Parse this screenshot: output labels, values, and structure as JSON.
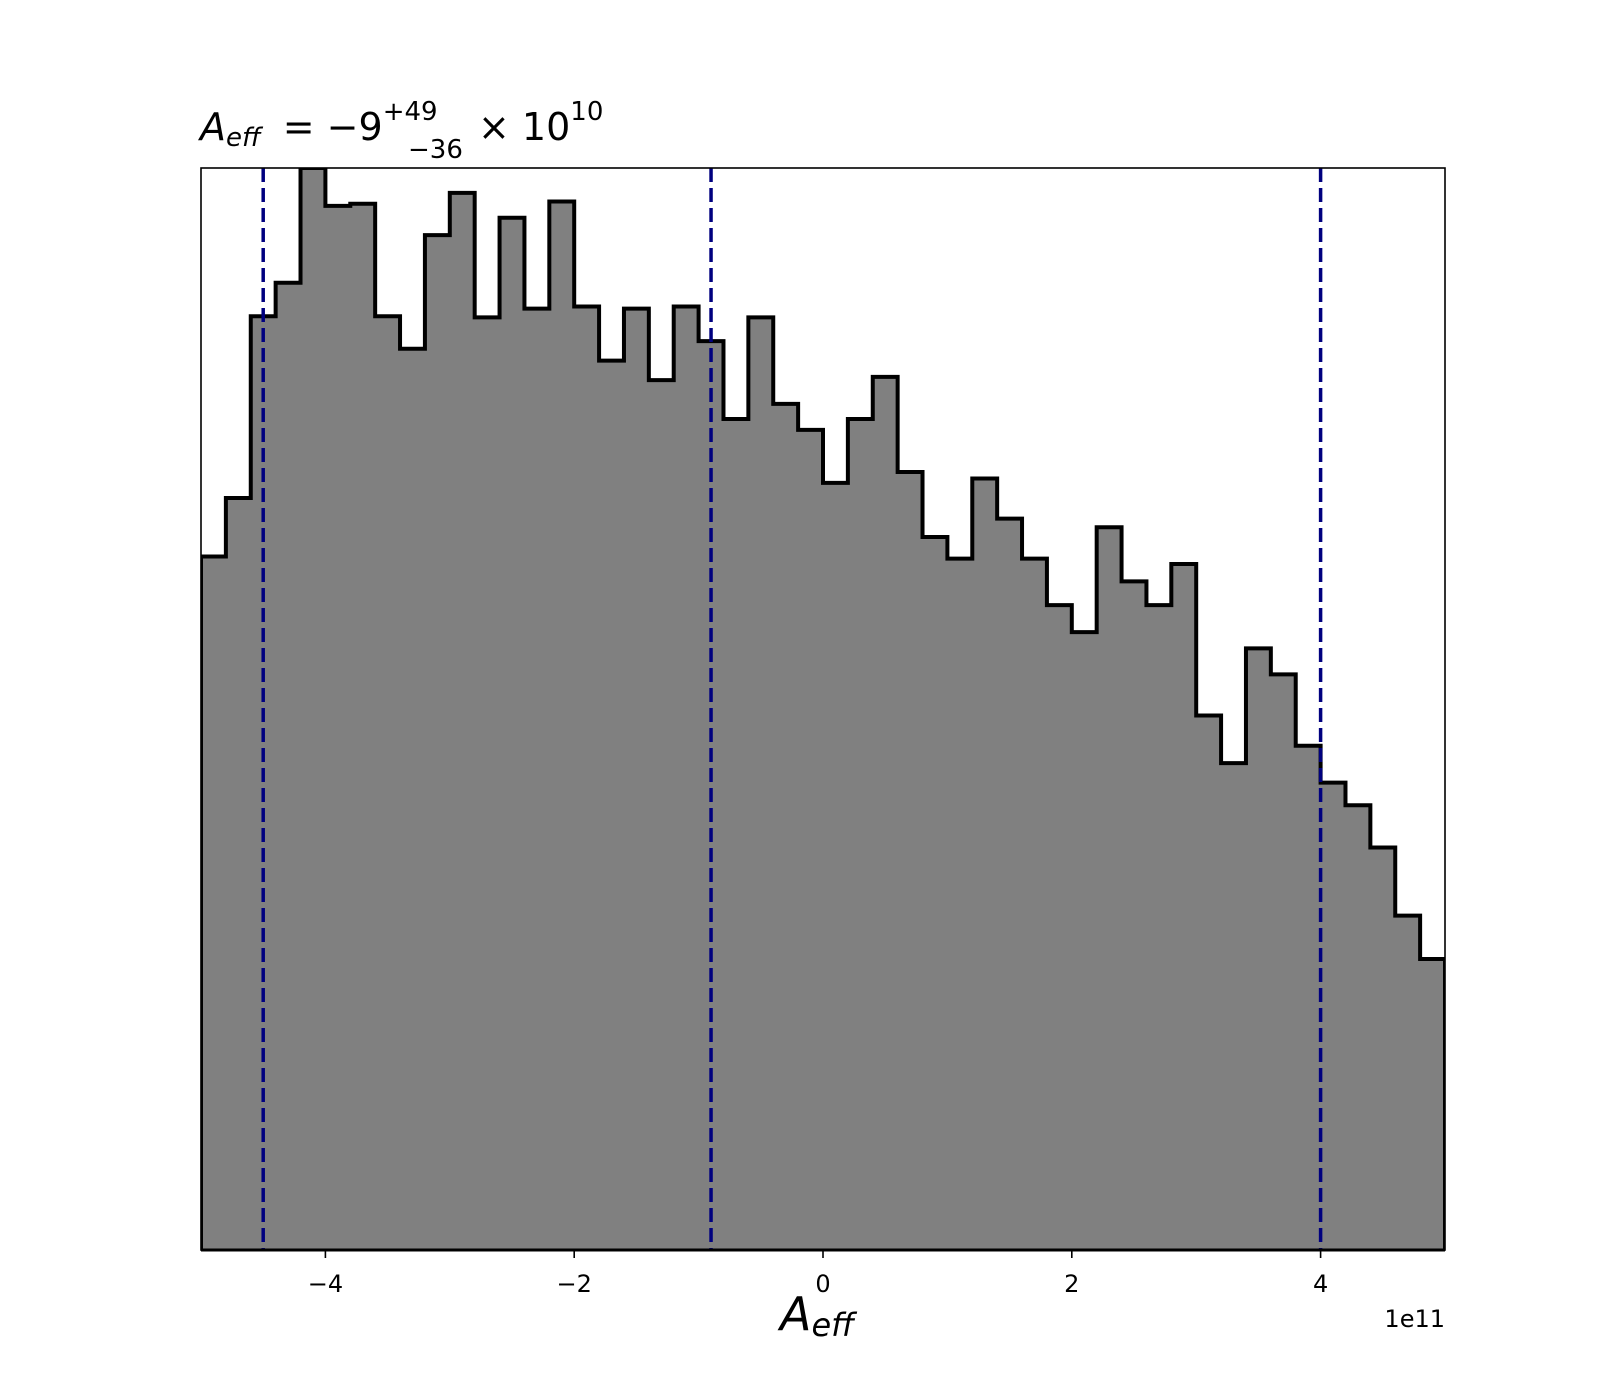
{
  "chart_data": {
    "type": "histogram",
    "title": {
      "symbol": "A",
      "symbol_sub": "eff",
      "equals": "= −9",
      "sup": "+49",
      "sub": "−36",
      "times": "× 10",
      "exponent": "10"
    },
    "xlabel": {
      "symbol": "A",
      "symbol_sub": "eff"
    },
    "x_offset_label": "1e11",
    "xlim": [
      -5,
      5
    ],
    "x_unit_scale": "1e11",
    "xticks": [
      -4,
      -2,
      0,
      2,
      4
    ],
    "xtick_labels": [
      "−4",
      "−2",
      "0",
      "2",
      "4"
    ],
    "y_ticks_visible": false,
    "bin_edges": [
      -5.0,
      -4.8,
      -4.6,
      -4.4,
      -4.2,
      -4.0,
      -3.8,
      -3.6,
      -3.4,
      -3.2,
      -3.0,
      -2.8,
      -2.6,
      -2.4,
      -2.2,
      -2.0,
      -1.8,
      -1.6,
      -1.4,
      -1.2,
      -1.0,
      -0.8,
      -0.6,
      -0.4,
      -0.2,
      0.0,
      0.2,
      0.4,
      0.6,
      0.8,
      1.0,
      1.2,
      1.4,
      1.6,
      1.8,
      2.0,
      2.2,
      2.4,
      2.6,
      2.8,
      3.0,
      3.2,
      3.4,
      3.6,
      3.8,
      4.0,
      4.2,
      4.4,
      4.6,
      4.8,
      5.0
    ],
    "counts": [
      64.1,
      69.5,
      86.3,
      89.4,
      100.0,
      96.5,
      96.7,
      86.3,
      83.3,
      93.8,
      97.7,
      86.2,
      95.4,
      87.0,
      96.9,
      87.2,
      82.2,
      87.0,
      80.4,
      87.2,
      84.0,
      76.8,
      86.2,
      78.2,
      75.8,
      70.9,
      76.8,
      80.7,
      71.9,
      65.9,
      63.9,
      71.3,
      67.6,
      63.9,
      59.6,
      57.1,
      66.8,
      61.8,
      59.6,
      63.4,
      49.4,
      45.0,
      55.6,
      53.2,
      46.6,
      43.2,
      41.1,
      37.2,
      30.9,
      26.9
    ],
    "ylim": [
      0,
      100
    ],
    "vlines": [
      -4.5,
      -0.9,
      4.0
    ],
    "colors": {
      "fill": "#808080",
      "edge": "#000000",
      "vline": "#00007f"
    }
  }
}
